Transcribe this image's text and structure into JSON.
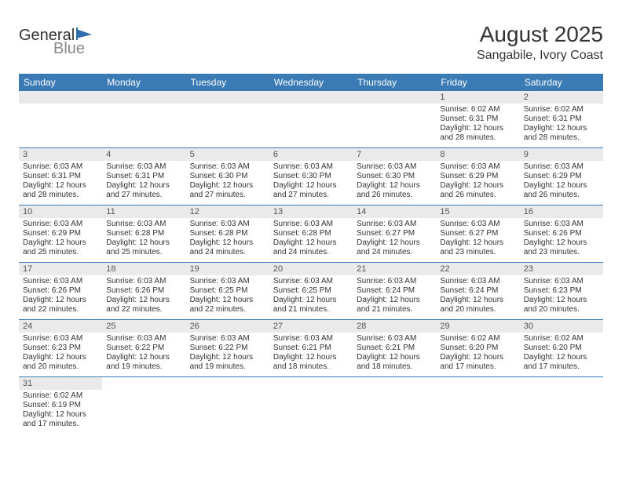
{
  "colors": {
    "header_bg": "#3a7ab5",
    "header_text": "#ffffff",
    "daynum_bg": "#eaeaea",
    "daynum_text": "#555555",
    "border": "#3a7ab5",
    "title_text": "#333333",
    "body_text": "#333333",
    "logo_gray": "#888888",
    "logo_dark": "#333333",
    "logo_blue": "#2f6ea8"
  },
  "logo": {
    "part1": "General",
    "part2": "Blue"
  },
  "title": "August 2025",
  "subtitle": "Sangabile, Ivory Coast",
  "day_headers": [
    "Sunday",
    "Monday",
    "Tuesday",
    "Wednesday",
    "Thursday",
    "Friday",
    "Saturday"
  ],
  "weeks": [
    [
      null,
      null,
      null,
      null,
      null,
      {
        "n": "1",
        "sr": "Sunrise: 6:02 AM",
        "ss": "Sunset: 6:31 PM",
        "d1": "Daylight: 12 hours",
        "d2": "and 28 minutes."
      },
      {
        "n": "2",
        "sr": "Sunrise: 6:02 AM",
        "ss": "Sunset: 6:31 PM",
        "d1": "Daylight: 12 hours",
        "d2": "and 28 minutes."
      }
    ],
    [
      {
        "n": "3",
        "sr": "Sunrise: 6:03 AM",
        "ss": "Sunset: 6:31 PM",
        "d1": "Daylight: 12 hours",
        "d2": "and 28 minutes."
      },
      {
        "n": "4",
        "sr": "Sunrise: 6:03 AM",
        "ss": "Sunset: 6:31 PM",
        "d1": "Daylight: 12 hours",
        "d2": "and 27 minutes."
      },
      {
        "n": "5",
        "sr": "Sunrise: 6:03 AM",
        "ss": "Sunset: 6:30 PM",
        "d1": "Daylight: 12 hours",
        "d2": "and 27 minutes."
      },
      {
        "n": "6",
        "sr": "Sunrise: 6:03 AM",
        "ss": "Sunset: 6:30 PM",
        "d1": "Daylight: 12 hours",
        "d2": "and 27 minutes."
      },
      {
        "n": "7",
        "sr": "Sunrise: 6:03 AM",
        "ss": "Sunset: 6:30 PM",
        "d1": "Daylight: 12 hours",
        "d2": "and 26 minutes."
      },
      {
        "n": "8",
        "sr": "Sunrise: 6:03 AM",
        "ss": "Sunset: 6:29 PM",
        "d1": "Daylight: 12 hours",
        "d2": "and 26 minutes."
      },
      {
        "n": "9",
        "sr": "Sunrise: 6:03 AM",
        "ss": "Sunset: 6:29 PM",
        "d1": "Daylight: 12 hours",
        "d2": "and 26 minutes."
      }
    ],
    [
      {
        "n": "10",
        "sr": "Sunrise: 6:03 AM",
        "ss": "Sunset: 6:29 PM",
        "d1": "Daylight: 12 hours",
        "d2": "and 25 minutes."
      },
      {
        "n": "11",
        "sr": "Sunrise: 6:03 AM",
        "ss": "Sunset: 6:28 PM",
        "d1": "Daylight: 12 hours",
        "d2": "and 25 minutes."
      },
      {
        "n": "12",
        "sr": "Sunrise: 6:03 AM",
        "ss": "Sunset: 6:28 PM",
        "d1": "Daylight: 12 hours",
        "d2": "and 24 minutes."
      },
      {
        "n": "13",
        "sr": "Sunrise: 6:03 AM",
        "ss": "Sunset: 6:28 PM",
        "d1": "Daylight: 12 hours",
        "d2": "and 24 minutes."
      },
      {
        "n": "14",
        "sr": "Sunrise: 6:03 AM",
        "ss": "Sunset: 6:27 PM",
        "d1": "Daylight: 12 hours",
        "d2": "and 24 minutes."
      },
      {
        "n": "15",
        "sr": "Sunrise: 6:03 AM",
        "ss": "Sunset: 6:27 PM",
        "d1": "Daylight: 12 hours",
        "d2": "and 23 minutes."
      },
      {
        "n": "16",
        "sr": "Sunrise: 6:03 AM",
        "ss": "Sunset: 6:26 PM",
        "d1": "Daylight: 12 hours",
        "d2": "and 23 minutes."
      }
    ],
    [
      {
        "n": "17",
        "sr": "Sunrise: 6:03 AM",
        "ss": "Sunset: 6:26 PM",
        "d1": "Daylight: 12 hours",
        "d2": "and 22 minutes."
      },
      {
        "n": "18",
        "sr": "Sunrise: 6:03 AM",
        "ss": "Sunset: 6:26 PM",
        "d1": "Daylight: 12 hours",
        "d2": "and 22 minutes."
      },
      {
        "n": "19",
        "sr": "Sunrise: 6:03 AM",
        "ss": "Sunset: 6:25 PM",
        "d1": "Daylight: 12 hours",
        "d2": "and 22 minutes."
      },
      {
        "n": "20",
        "sr": "Sunrise: 6:03 AM",
        "ss": "Sunset: 6:25 PM",
        "d1": "Daylight: 12 hours",
        "d2": "and 21 minutes."
      },
      {
        "n": "21",
        "sr": "Sunrise: 6:03 AM",
        "ss": "Sunset: 6:24 PM",
        "d1": "Daylight: 12 hours",
        "d2": "and 21 minutes."
      },
      {
        "n": "22",
        "sr": "Sunrise: 6:03 AM",
        "ss": "Sunset: 6:24 PM",
        "d1": "Daylight: 12 hours",
        "d2": "and 20 minutes."
      },
      {
        "n": "23",
        "sr": "Sunrise: 6:03 AM",
        "ss": "Sunset: 6:23 PM",
        "d1": "Daylight: 12 hours",
        "d2": "and 20 minutes."
      }
    ],
    [
      {
        "n": "24",
        "sr": "Sunrise: 6:03 AM",
        "ss": "Sunset: 6:23 PM",
        "d1": "Daylight: 12 hours",
        "d2": "and 20 minutes."
      },
      {
        "n": "25",
        "sr": "Sunrise: 6:03 AM",
        "ss": "Sunset: 6:22 PM",
        "d1": "Daylight: 12 hours",
        "d2": "and 19 minutes."
      },
      {
        "n": "26",
        "sr": "Sunrise: 6:03 AM",
        "ss": "Sunset: 6:22 PM",
        "d1": "Daylight: 12 hours",
        "d2": "and 19 minutes."
      },
      {
        "n": "27",
        "sr": "Sunrise: 6:03 AM",
        "ss": "Sunset: 6:21 PM",
        "d1": "Daylight: 12 hours",
        "d2": "and 18 minutes."
      },
      {
        "n": "28",
        "sr": "Sunrise: 6:03 AM",
        "ss": "Sunset: 6:21 PM",
        "d1": "Daylight: 12 hours",
        "d2": "and 18 minutes."
      },
      {
        "n": "29",
        "sr": "Sunrise: 6:02 AM",
        "ss": "Sunset: 6:20 PM",
        "d1": "Daylight: 12 hours",
        "d2": "and 17 minutes."
      },
      {
        "n": "30",
        "sr": "Sunrise: 6:02 AM",
        "ss": "Sunset: 6:20 PM",
        "d1": "Daylight: 12 hours",
        "d2": "and 17 minutes."
      }
    ],
    [
      {
        "n": "31",
        "sr": "Sunrise: 6:02 AM",
        "ss": "Sunset: 6:19 PM",
        "d1": "Daylight: 12 hours",
        "d2": "and 17 minutes."
      },
      null,
      null,
      null,
      null,
      null,
      null
    ]
  ]
}
